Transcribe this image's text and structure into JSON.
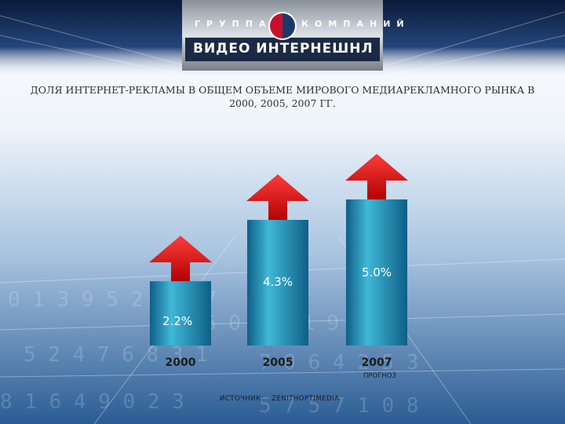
{
  "header": {
    "logo_top_left": "ГРУППА",
    "logo_top_right": "КОМПАНИЙ",
    "logo_main": "ВИДЕО ИНТЕРНЕШНЛ",
    "logo_mark": "VI"
  },
  "chart_data": {
    "type": "bar",
    "title": "ДОЛЯ ИНТЕРНЕТ-РЕКЛАМЫ В ОБЩЕМ ОБЪЕМЕ МИРОВОГО МЕДИАРЕКЛАМНОГО РЫНКА В 2000, 2005, 2007 ГГ.",
    "xlabel": "",
    "ylabel": "",
    "categories": [
      "2000",
      "2005",
      "2007"
    ],
    "category_notes": [
      "",
      "",
      "ПРОГНОЗ"
    ],
    "values": [
      2.2,
      4.3,
      5.0
    ],
    "value_labels": [
      "2.2%",
      "4.3%",
      "5.0%"
    ],
    "ylim": [
      0,
      5.6
    ],
    "grid": false,
    "legend": "none",
    "colors": {
      "bar_top": "#3fb8d6",
      "bar_mid": "#1d8fb6",
      "bar_bottom": "#0f5f88",
      "arrow_top": "#ff3b3b",
      "arrow_bottom": "#b00000",
      "value_text": "#ffffff",
      "category_text": "#1c1c1c"
    }
  },
  "source": {
    "label": "ИСТОЧНИК:",
    "value": "ZENITHOPTIMEDIA"
  }
}
